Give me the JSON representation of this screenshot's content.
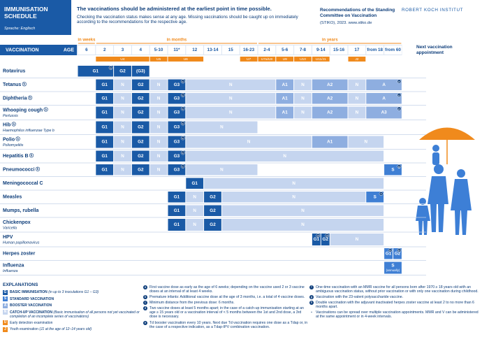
{
  "header": {
    "title": "IMMUNISATION SCHEDULE",
    "language": "Sprache: Englisch",
    "intro_bold": "The vaccinations should be administered at the earliest point in time possible.",
    "intro": "Checking the vaccination status makes sense at any age. Missing vaccinations should be caught up on immediately according to the recommendations for the respective age.",
    "recommendations": "Recommendations of the Standing Committee on Vaccination",
    "source": "(STIKO), 2023. www.stiko.de",
    "logo": "ROBERT KOCH INSTITUT"
  },
  "schedule": {
    "vaccination_header": "VACCINATION",
    "age_header": "AGE",
    "units": [
      {
        "label": "in weeks",
        "ages": [
          0,
          0
        ]
      },
      {
        "label": "in months",
        "ages": [
          1,
          9
        ]
      },
      {
        "label": "in years",
        "ages": [
          10,
          17
        ]
      }
    ],
    "ages": [
      "6",
      "2",
      "3",
      "4",
      "5-10",
      "11*",
      "12",
      "13-14",
      "15",
      "16-23",
      "2-4",
      "5-6",
      "7-8",
      "9-14",
      "15-16",
      "17",
      "from 18",
      "from 60"
    ],
    "checkups": [
      {
        "label": "U4",
        "ages": [
          1,
          3
        ]
      },
      {
        "label": "U5",
        "ages": [
          4,
          4
        ]
      },
      {
        "label": "U6",
        "ages": [
          5,
          6
        ]
      },
      {
        "label": "U7",
        "ages": [
          9,
          9
        ]
      },
      {
        "label": "U7a/U8",
        "ages": [
          10,
          10
        ]
      },
      {
        "label": "U9",
        "ages": [
          11,
          11
        ]
      },
      {
        "label": "U10",
        "ages": [
          12,
          12
        ]
      },
      {
        "label": "U11/J1",
        "ages": [
          13,
          13
        ]
      },
      {
        "label": "J2",
        "ages": [
          15,
          15
        ]
      }
    ],
    "next_appointment": "Next vaccination appointment",
    "rows": [
      {
        "name": "Rotavirus",
        "segments": [
          {
            "label": "G1",
            "kind": "G",
            "ages": [
              0,
              1
            ],
            "note": "a"
          },
          {
            "label": "G2",
            "kind": "G",
            "ages": [
              2,
              2
            ]
          },
          {
            "label": "(G3)",
            "kind": "G",
            "ages": [
              3,
              3
            ]
          }
        ]
      },
      {
        "name": "Tetanus",
        "note": "b",
        "segments": [
          {
            "label": "G1",
            "kind": "G",
            "ages": [
              1,
              1
            ]
          },
          {
            "label": "N",
            "kind": "N",
            "ages": [
              2,
              2
            ]
          },
          {
            "label": "G2",
            "kind": "G",
            "ages": [
              3,
              3
            ]
          },
          {
            "label": "N",
            "kind": "N",
            "ages": [
              4,
              4
            ]
          },
          {
            "label": "G3",
            "kind": "G",
            "ages": [
              5,
              5
            ],
            "note": "c"
          },
          {
            "label": "N",
            "kind": "N",
            "ages": [
              6,
              10
            ]
          },
          {
            "label": "A1",
            "kind": "A",
            "ages": [
              11,
              11
            ]
          },
          {
            "label": "N",
            "kind": "N",
            "ages": [
              12,
              12
            ]
          },
          {
            "label": "A2",
            "kind": "A",
            "ages": [
              13,
              14
            ]
          },
          {
            "label": "N",
            "kind": "N",
            "ages": [
              15,
              15
            ]
          },
          {
            "label": "A",
            "kind": "A",
            "ages": [
              16,
              17
            ],
            "note": "e"
          }
        ]
      },
      {
        "name": "Diphtheria",
        "note": "b",
        "segments": [
          {
            "label": "G1",
            "kind": "G",
            "ages": [
              1,
              1
            ]
          },
          {
            "label": "N",
            "kind": "N",
            "ages": [
              2,
              2
            ]
          },
          {
            "label": "G2",
            "kind": "G",
            "ages": [
              3,
              3
            ]
          },
          {
            "label": "N",
            "kind": "N",
            "ages": [
              4,
              4
            ]
          },
          {
            "label": "G3",
            "kind": "G",
            "ages": [
              5,
              5
            ],
            "note": "c"
          },
          {
            "label": "N",
            "kind": "N",
            "ages": [
              6,
              10
            ]
          },
          {
            "label": "A1",
            "kind": "A",
            "ages": [
              11,
              11
            ]
          },
          {
            "label": "N",
            "kind": "N",
            "ages": [
              12,
              12
            ]
          },
          {
            "label": "A2",
            "kind": "A",
            "ages": [
              13,
              14
            ]
          },
          {
            "label": "N",
            "kind": "N",
            "ages": [
              15,
              15
            ]
          },
          {
            "label": "A",
            "kind": "A",
            "ages": [
              16,
              17
            ],
            "note": "e"
          }
        ]
      },
      {
        "name": "Whooping cough",
        "note": "b",
        "subname": "Pertussis",
        "segments": [
          {
            "label": "G1",
            "kind": "G",
            "ages": [
              1,
              1
            ]
          },
          {
            "label": "N",
            "kind": "N",
            "ages": [
              2,
              2
            ]
          },
          {
            "label": "G2",
            "kind": "G",
            "ages": [
              3,
              3
            ]
          },
          {
            "label": "N",
            "kind": "N",
            "ages": [
              4,
              4
            ]
          },
          {
            "label": "G3",
            "kind": "G",
            "ages": [
              5,
              5
            ],
            "note": "c"
          },
          {
            "label": "N",
            "kind": "N",
            "ages": [
              6,
              10
            ]
          },
          {
            "label": "A1",
            "kind": "A",
            "ages": [
              11,
              11
            ]
          },
          {
            "label": "N",
            "kind": "N",
            "ages": [
              12,
              12
            ]
          },
          {
            "label": "A2",
            "kind": "A",
            "ages": [
              13,
              14
            ]
          },
          {
            "label": "N",
            "kind": "N",
            "ages": [
              15,
              15
            ]
          },
          {
            "label": "A3",
            "kind": "A",
            "ages": [
              16,
              17
            ],
            "note": "e"
          }
        ]
      },
      {
        "name": "Hib",
        "note": "b",
        "subname": "Haemophilus influenzae Type b",
        "segments": [
          {
            "label": "G1",
            "kind": "G",
            "ages": [
              1,
              1
            ]
          },
          {
            "label": "N",
            "kind": "N",
            "ages": [
              2,
              2
            ]
          },
          {
            "label": "G2",
            "kind": "G",
            "ages": [
              3,
              3
            ]
          },
          {
            "label": "N",
            "kind": "N",
            "ages": [
              4,
              4
            ]
          },
          {
            "label": "G3",
            "kind": "G",
            "ages": [
              5,
              5
            ],
            "note": "c"
          },
          {
            "label": "N",
            "kind": "N",
            "ages": [
              6,
              9
            ]
          }
        ]
      },
      {
        "name": "Polio",
        "note": "b",
        "subname": "Poliomyelitis",
        "segments": [
          {
            "label": "G1",
            "kind": "G",
            "ages": [
              1,
              1
            ]
          },
          {
            "label": "N",
            "kind": "N",
            "ages": [
              2,
              2
            ]
          },
          {
            "label": "G2",
            "kind": "G",
            "ages": [
              3,
              3
            ]
          },
          {
            "label": "N",
            "kind": "N",
            "ages": [
              4,
              4
            ]
          },
          {
            "label": "G3",
            "kind": "G",
            "ages": [
              5,
              5
            ],
            "note": "c"
          },
          {
            "label": "N",
            "kind": "N",
            "ages": [
              6,
              12
            ]
          },
          {
            "label": "A1",
            "kind": "A",
            "ages": [
              13,
              14
            ]
          },
          {
            "label": "N",
            "kind": "N",
            "ages": [
              15,
              16
            ]
          }
        ]
      },
      {
        "name": "Hepatitis B",
        "note": "b",
        "segments": [
          {
            "label": "G1",
            "kind": "G",
            "ages": [
              1,
              1
            ]
          },
          {
            "label": "N",
            "kind": "N",
            "ages": [
              2,
              2
            ]
          },
          {
            "label": "G2",
            "kind": "G",
            "ages": [
              3,
              3
            ]
          },
          {
            "label": "N",
            "kind": "N",
            "ages": [
              4,
              4
            ]
          },
          {
            "label": "G3",
            "kind": "G",
            "ages": [
              5,
              5
            ],
            "note": "c"
          },
          {
            "label": "N",
            "kind": "N",
            "ages": [
              6,
              16
            ]
          }
        ]
      },
      {
        "name": "Pneumococci",
        "note": "b",
        "segments": [
          {
            "label": "G1",
            "kind": "G",
            "ages": [
              1,
              1
            ]
          },
          {
            "label": "N",
            "kind": "N",
            "ages": [
              2,
              2
            ]
          },
          {
            "label": "G2",
            "kind": "G",
            "ages": [
              3,
              3
            ]
          },
          {
            "label": "N",
            "kind": "N",
            "ages": [
              4,
              4
            ]
          },
          {
            "label": "G3",
            "kind": "G",
            "ages": [
              5,
              5
            ],
            "note": "c"
          },
          {
            "label": "N",
            "kind": "N",
            "ages": [
              6,
              9
            ]
          },
          {
            "label": "S",
            "kind": "S",
            "ages": [
              17,
              17
            ],
            "note": "g"
          }
        ]
      },
      {
        "name": "Meningococcal C",
        "segments": [
          {
            "label": "G1",
            "kind": "G",
            "ages": [
              6,
              6
            ]
          },
          {
            "label": "N",
            "kind": "N",
            "ages": [
              7,
              16
            ]
          }
        ]
      },
      {
        "name": "Measles",
        "segments": [
          {
            "label": "G1",
            "kind": "G",
            "ages": [
              5,
              5
            ]
          },
          {
            "label": "N",
            "kind": "N",
            "ages": [
              6,
              6
            ]
          },
          {
            "label": "G2",
            "kind": "G",
            "ages": [
              7,
              7
            ]
          },
          {
            "label": "N",
            "kind": "N",
            "ages": [
              8,
              15
            ]
          },
          {
            "label": "S",
            "kind": "S",
            "ages": [
              16,
              16
            ],
            "note": "f"
          }
        ]
      },
      {
        "name": "Mumps, rubella",
        "segments": [
          {
            "label": "G1",
            "kind": "G",
            "ages": [
              5,
              5
            ]
          },
          {
            "label": "N",
            "kind": "N",
            "ages": [
              6,
              6
            ]
          },
          {
            "label": "G2",
            "kind": "G",
            "ages": [
              7,
              7
            ]
          },
          {
            "label": "N",
            "kind": "N",
            "ages": [
              8,
              16
            ]
          }
        ]
      },
      {
        "name": "Chickenpox",
        "subname": "Varicella",
        "segments": [
          {
            "label": "G1",
            "kind": "G",
            "ages": [
              5,
              5
            ]
          },
          {
            "label": "N",
            "kind": "N",
            "ages": [
              6,
              6
            ]
          },
          {
            "label": "G2",
            "kind": "G",
            "ages": [
              7,
              7
            ]
          },
          {
            "label": "N",
            "kind": "N",
            "ages": [
              8,
              16
            ]
          }
        ]
      },
      {
        "name": "HPV",
        "subname": "Human papillomavirus",
        "segments": [
          {
            "label": "G1",
            "kind": "G",
            "ages": [
              13,
              13
            ],
            "note": "d"
          },
          {
            "label": "G2",
            "kind": "G",
            "ages": [
              13,
              13
            ],
            "note": "d"
          },
          {
            "label": "N",
            "kind": "N",
            "ages": [
              14,
              16
            ]
          }
        ]
      },
      {
        "name": "Herpes zoster",
        "segments": [
          {
            "label": "G1",
            "kind": "S",
            "ages": [
              17,
              17
            ],
            "note": "h"
          },
          {
            "label": "G2",
            "kind": "S",
            "ages": [
              17,
              17
            ],
            "note": "h"
          }
        ]
      },
      {
        "name": "Influenza",
        "subname": "Influenza",
        "segments": [
          {
            "label": "S",
            "kind": "S",
            "ages": [
              17,
              17
            ],
            "sub": "(annually)"
          }
        ]
      }
    ]
  },
  "explanations": {
    "title": "EXPLANATIONS",
    "legend": [
      {
        "key": "G",
        "kind": "G",
        "text": "BASIC IMMUNISATION",
        "detail": "(in up to 3 inoculations G1 – G3)"
      },
      {
        "key": "S",
        "kind": "S",
        "text": "STANDARD VACCINATION"
      },
      {
        "key": "A",
        "kind": "A",
        "text": "BOOSTER VACCINATION"
      },
      {
        "key": "N",
        "kind": "N",
        "text": "CATCH-UP VACCINATION",
        "detail": "(Basic immunisation of all persons not yet vaccinated or completion of an incomplete series of vaccinations)"
      },
      {
        "key": "U",
        "kind": "U",
        "text": "Early detection examination"
      },
      {
        "key": "J",
        "kind": "U",
        "text": "Youth examination",
        "detail": "(J1 at the age of 12–14 years old)"
      }
    ],
    "footnotes": [
      {
        "key": "a",
        "text": "First vaccine dose as early as the age of 6 weeks; depending on the vaccine used 2 or 3 vaccine doses at an interval of at least 4 weeks."
      },
      {
        "key": "b",
        "text": "Premature infants: Additional vaccine dose at the age of 3 months, i.e. a total of 4 vaccine doses."
      },
      {
        "key": "c",
        "text": "Minimum distance from the previous dose: 6 months."
      },
      {
        "key": "d",
        "text": "Two vaccine doses at least 5 months apart; in the case of a catch-up immunisation starting at an age ≥ 15 years old or a vaccination interval of < 5 months between the 1st and 2nd dose, a 3rd dose is necessary."
      },
      {
        "key": "e",
        "text": "Td booster vaccination every 10 years. Next due Td vaccination requires one dose as a Tdap or, in the case of a respective indication, as a Tdap-IPV combination vaccination."
      },
      {
        "key": "f",
        "text": "One-time vaccination with an MMR vaccine for all persons born after 1970 ≥ 18 years old with an ambiguous vaccination status, without prior vaccination or with only one vaccination during childhood."
      },
      {
        "key": "g",
        "text": "Vaccination with the 23-valent polysaccharide vaccine."
      },
      {
        "key": "h",
        "text": "Double vaccination with the adjuvant inactivated herpes zoster vaccine at least 2 to no more than 6 months apart."
      },
      {
        "key": "•",
        "text": "Vaccinations can be spread over multiple vaccination appointments. MMR and V can be administered at the same appointment or in 4-week intervals."
      }
    ]
  }
}
